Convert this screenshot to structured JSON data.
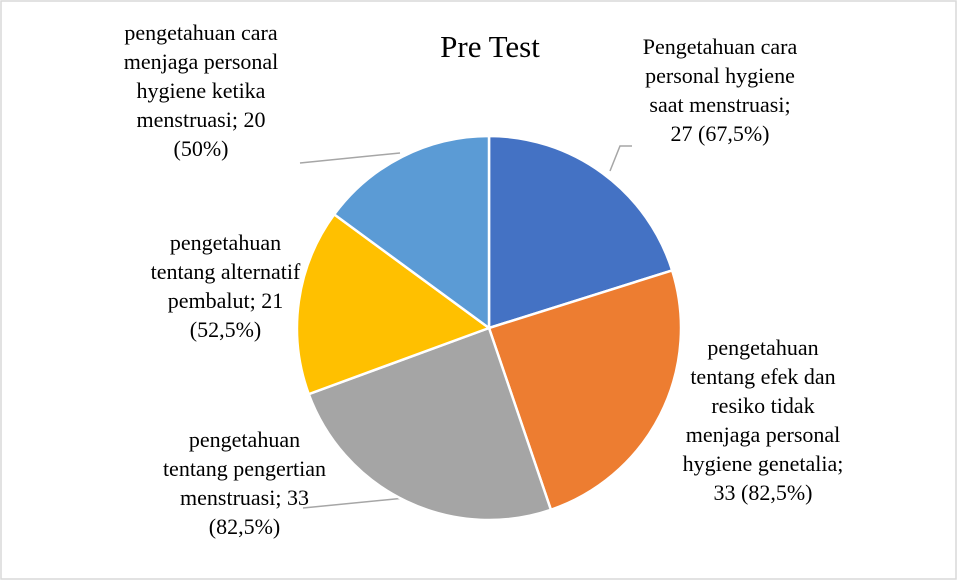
{
  "chart_data": {
    "type": "pie",
    "title": "Pre Test",
    "values": [
      27,
      33,
      33,
      21,
      20
    ],
    "value_labels": [
      "Pengetahuan cara personal hygiene saat menstruasi; 27 (67,5%)",
      "pengetahuan tentang efek dan resiko tidak menjaga personal hygiene genetalia; 33 (82,5%)",
      "pengetahuan tentang pengertian menstruasi; 33 (82,5%)",
      "pengetahuan tentang alternatif pembalut; 21 (52,5%)",
      "pengetahuan cara menjaga personal hygiene ketika menstruasi; 20 (50%)"
    ],
    "colors": [
      "#4472C4",
      "#ED7D31",
      "#A5A5A5",
      "#FFC000",
      "#5B9BD5"
    ]
  }
}
